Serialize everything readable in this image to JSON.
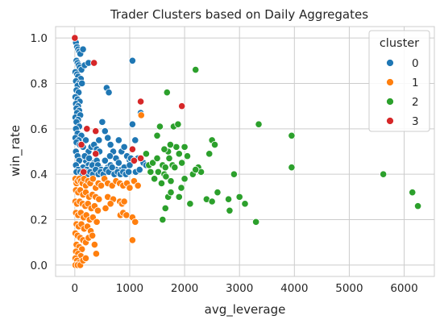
{
  "chart_data": {
    "type": "scatter",
    "title": "Trader Clusters based on Daily Aggregates",
    "xlabel": "avg_leverage",
    "ylabel": "win_rate",
    "xlim": [
      -350,
      6550
    ],
    "ylim": [
      -0.05,
      1.05
    ],
    "xticks": [
      0,
      1000,
      2000,
      3000,
      4000,
      5000,
      6000
    ],
    "yticks": [
      0.0,
      0.2,
      0.4,
      0.6,
      0.8,
      1.0
    ],
    "xtick_labels": [
      "0",
      "1000",
      "2000",
      "3000",
      "4000",
      "5000",
      "6000"
    ],
    "ytick_labels": [
      "0.0",
      "0.2",
      "0.4",
      "0.6",
      "0.8",
      "1.0"
    ],
    "grid": true,
    "legend": {
      "title": "cluster",
      "placement": "top-right"
    },
    "series": [
      {
        "name": "0",
        "color": "#1f77b4",
        "points": [
          [
            10,
            1.0
          ],
          [
            20,
            0.98
          ],
          [
            40,
            0.96
          ],
          [
            60,
            0.95
          ],
          [
            80,
            0.94
          ],
          [
            100,
            0.93
          ],
          [
            150,
            0.95
          ],
          [
            30,
            0.9
          ],
          [
            50,
            0.89
          ],
          [
            70,
            0.88
          ],
          [
            90,
            0.87
          ],
          [
            120,
            0.86
          ],
          [
            10,
            0.85
          ],
          [
            40,
            0.84
          ],
          [
            60,
            0.83
          ],
          [
            110,
            0.82
          ],
          [
            20,
            0.81
          ],
          [
            80,
            0.8
          ],
          [
            50,
            0.79
          ],
          [
            130,
            0.8
          ],
          [
            30,
            0.77
          ],
          [
            70,
            0.76
          ],
          [
            10,
            0.74
          ],
          [
            50,
            0.73
          ],
          [
            90,
            0.72
          ],
          [
            20,
            0.71
          ],
          [
            60,
            0.7
          ],
          [
            30,
            0.69
          ],
          [
            80,
            0.68
          ],
          [
            40,
            0.67
          ],
          [
            10,
            0.65
          ],
          [
            100,
            0.66
          ],
          [
            60,
            0.64
          ],
          [
            30,
            0.63
          ],
          [
            80,
            0.61
          ],
          [
            20,
            0.6
          ],
          [
            50,
            0.58
          ],
          [
            120,
            0.57
          ],
          [
            10,
            0.56
          ],
          [
            70,
            0.55
          ],
          [
            30,
            0.54
          ],
          [
            90,
            0.53
          ],
          [
            150,
            0.52
          ],
          [
            200,
            0.55
          ],
          [
            250,
            0.5
          ],
          [
            300,
            0.52
          ],
          [
            350,
            0.53
          ],
          [
            400,
            0.51
          ],
          [
            450,
            0.5
          ],
          [
            500,
            0.63
          ],
          [
            550,
            0.59
          ],
          [
            600,
            0.56
          ],
          [
            650,
            0.53
          ],
          [
            700,
            0.5
          ],
          [
            750,
            0.47
          ],
          [
            800,
            0.55
          ],
          [
            850,
            0.5
          ],
          [
            900,
            0.52
          ],
          [
            950,
            0.48
          ],
          [
            1000,
            0.46
          ],
          [
            1050,
            0.62
          ],
          [
            1100,
            0.55
          ],
          [
            1150,
            0.47
          ],
          [
            1200,
            0.67
          ],
          [
            1250,
            0.45
          ],
          [
            1300,
            0.44
          ],
          [
            200,
            0.46
          ],
          [
            250,
            0.44
          ],
          [
            300,
            0.43
          ],
          [
            350,
            0.45
          ],
          [
            400,
            0.46
          ],
          [
            450,
            0.43
          ],
          [
            500,
            0.41
          ],
          [
            550,
            0.46
          ],
          [
            600,
            0.43
          ],
          [
            650,
            0.44
          ],
          [
            700,
            0.41
          ],
          [
            750,
            0.42
          ],
          [
            800,
            0.45
          ],
          [
            850,
            0.42
          ],
          [
            900,
            0.43
          ],
          [
            950,
            0.41
          ],
          [
            1000,
            0.44
          ],
          [
            100,
            0.47
          ],
          [
            150,
            0.43
          ],
          [
            180,
            0.48
          ],
          [
            220,
            0.42
          ],
          [
            260,
            0.47
          ],
          [
            320,
            0.44
          ],
          [
            360,
            0.41
          ],
          [
            420,
            0.44
          ],
          [
            480,
            0.42
          ],
          [
            20,
            0.5
          ],
          [
            50,
            0.48
          ],
          [
            80,
            0.46
          ],
          [
            20,
            0.44
          ],
          [
            60,
            0.42
          ],
          [
            30,
            0.41
          ],
          [
            100,
            0.41
          ],
          [
            140,
            0.4
          ],
          [
            190,
            0.41
          ],
          [
            230,
            0.4
          ],
          [
            280,
            0.41
          ],
          [
            330,
            0.4
          ],
          [
            380,
            0.42
          ],
          [
            430,
            0.4
          ],
          [
            470,
            0.41
          ],
          [
            520,
            0.4
          ],
          [
            570,
            0.42
          ],
          [
            620,
            0.41
          ],
          [
            680,
            0.43
          ],
          [
            720,
            0.4
          ],
          [
            780,
            0.41
          ],
          [
            830,
            0.4
          ],
          [
            880,
            0.41
          ],
          [
            930,
            0.4
          ],
          [
            980,
            0.41
          ],
          [
            1050,
            0.9
          ],
          [
            580,
            0.78
          ],
          [
            620,
            0.76
          ],
          [
            180,
            0.88
          ],
          [
            250,
            0.89
          ],
          [
            440,
            0.55
          ],
          [
            640,
            0.48
          ],
          [
            1020,
            0.47
          ],
          [
            1110,
            0.41
          ],
          [
            1180,
            0.42
          ]
        ]
      },
      {
        "name": "1",
        "color": "#ff7f0e",
        "points": [
          [
            10,
            0.38
          ],
          [
            30,
            0.36
          ],
          [
            50,
            0.37
          ],
          [
            80,
            0.38
          ],
          [
            110,
            0.37
          ],
          [
            140,
            0.36
          ],
          [
            170,
            0.38
          ],
          [
            200,
            0.35
          ],
          [
            240,
            0.37
          ],
          [
            280,
            0.36
          ],
          [
            330,
            0.38
          ],
          [
            380,
            0.34
          ],
          [
            430,
            0.36
          ],
          [
            480,
            0.35
          ],
          [
            20,
            0.33
          ],
          [
            60,
            0.32
          ],
          [
            100,
            0.33
          ],
          [
            150,
            0.31
          ],
          [
            200,
            0.32
          ],
          [
            260,
            0.3
          ],
          [
            320,
            0.31
          ],
          [
            380,
            0.3
          ],
          [
            440,
            0.29
          ],
          [
            10,
            0.28
          ],
          [
            40,
            0.27
          ],
          [
            90,
            0.28
          ],
          [
            140,
            0.27
          ],
          [
            190,
            0.26
          ],
          [
            240,
            0.27
          ],
          [
            300,
            0.25
          ],
          [
            360,
            0.26
          ],
          [
            420,
            0.24
          ],
          [
            20,
            0.23
          ],
          [
            60,
            0.22
          ],
          [
            110,
            0.23
          ],
          [
            160,
            0.21
          ],
          [
            210,
            0.22
          ],
          [
            270,
            0.2
          ],
          [
            330,
            0.21
          ],
          [
            400,
            0.19
          ],
          [
            30,
            0.18
          ],
          [
            70,
            0.17
          ],
          [
            120,
            0.18
          ],
          [
            170,
            0.16
          ],
          [
            230,
            0.17
          ],
          [
            290,
            0.15
          ],
          [
            10,
            0.14
          ],
          [
            50,
            0.13
          ],
          [
            100,
            0.12
          ],
          [
            150,
            0.11
          ],
          [
            200,
            0.1
          ],
          [
            30,
            0.09
          ],
          [
            80,
            0.08
          ],
          [
            130,
            0.07
          ],
          [
            20,
            0.06
          ],
          [
            60,
            0.05
          ],
          [
            110,
            0.04
          ],
          [
            10,
            0.03
          ],
          [
            40,
            0.02
          ],
          [
            80,
            0.01
          ],
          [
            10,
            0.0
          ],
          [
            50,
            0.0
          ],
          [
            100,
            0.0
          ],
          [
            150,
            0.02
          ],
          [
            200,
            0.03
          ],
          [
            540,
            0.38
          ],
          [
            600,
            0.36
          ],
          [
            680,
            0.35
          ],
          [
            750,
            0.37
          ],
          [
            820,
            0.36
          ],
          [
            880,
            0.35
          ],
          [
            950,
            0.36
          ],
          [
            1000,
            0.34
          ],
          [
            1080,
            0.37
          ],
          [
            1150,
            0.35
          ],
          [
            1210,
            0.66
          ],
          [
            820,
            0.28
          ],
          [
            860,
            0.27
          ],
          [
            900,
            0.28
          ],
          [
            830,
            0.22
          ],
          [
            880,
            0.23
          ],
          [
            940,
            0.22
          ],
          [
            1050,
            0.21
          ],
          [
            1100,
            0.19
          ],
          [
            1050,
            0.11
          ],
          [
            390,
            0.05
          ],
          [
            600,
            0.3
          ],
          [
            700,
            0.29
          ],
          [
            560,
            0.25
          ],
          [
            650,
            0.27
          ],
          [
            250,
            0.12
          ],
          [
            320,
            0.13
          ],
          [
            360,
            0.09
          ]
        ]
      },
      {
        "name": "2",
        "color": "#2ca02c",
        "points": [
          [
            1300,
            0.49
          ],
          [
            1350,
            0.44
          ],
          [
            1380,
            0.41
          ],
          [
            1420,
            0.45
          ],
          [
            1450,
            0.38
          ],
          [
            1500,
            0.47
          ],
          [
            1520,
            0.41
          ],
          [
            1580,
            0.36
          ],
          [
            1600,
            0.44
          ],
          [
            1630,
            0.4
          ],
          [
            1650,
            0.43
          ],
          [
            1660,
            0.39
          ],
          [
            1680,
            0.76
          ],
          [
            1700,
            0.5
          ],
          [
            1720,
            0.47
          ],
          [
            1750,
            0.37
          ],
          [
            1780,
            0.44
          ],
          [
            1800,
            0.61
          ],
          [
            1850,
            0.52
          ],
          [
            1900,
            0.49
          ],
          [
            1950,
            0.45
          ],
          [
            2000,
            0.52
          ],
          [
            2050,
            0.48
          ],
          [
            2100,
            0.27
          ],
          [
            2150,
            0.4
          ],
          [
            2200,
            0.86
          ],
          [
            2250,
            0.43
          ],
          [
            2300,
            0.41
          ],
          [
            2400,
            0.29
          ],
          [
            2450,
            0.49
          ],
          [
            2500,
            0.55
          ],
          [
            2550,
            0.53
          ],
          [
            2600,
            0.32
          ],
          [
            1600,
            0.2
          ],
          [
            1650,
            0.25
          ],
          [
            1700,
            0.3
          ],
          [
            1750,
            0.32
          ],
          [
            1900,
            0.3
          ],
          [
            2500,
            0.28
          ],
          [
            2800,
            0.29
          ],
          [
            2820,
            0.24
          ],
          [
            2900,
            0.4
          ],
          [
            3000,
            0.3
          ],
          [
            3100,
            0.27
          ],
          [
            3300,
            0.19
          ],
          [
            3350,
            0.62
          ],
          [
            3950,
            0.57
          ],
          [
            3950,
            0.43
          ],
          [
            5620,
            0.4
          ],
          [
            6150,
            0.32
          ],
          [
            6250,
            0.26
          ],
          [
            1550,
            0.61
          ],
          [
            1500,
            0.57
          ],
          [
            1880,
            0.62
          ],
          [
            2000,
            0.38
          ],
          [
            1740,
            0.53
          ],
          [
            1630,
            0.51
          ],
          [
            1820,
            0.43
          ],
          [
            1940,
            0.34
          ],
          [
            2200,
            0.42
          ]
        ]
      },
      {
        "name": "3",
        "color": "#d62728",
        "points": [
          [
            0,
            1.0
          ],
          [
            350,
            0.89
          ],
          [
            1200,
            0.72
          ],
          [
            1200,
            0.47
          ],
          [
            1050,
            0.51
          ],
          [
            1950,
            0.7
          ],
          [
            120,
            0.53
          ],
          [
            220,
            0.6
          ],
          [
            380,
            0.59
          ],
          [
            380,
            0.49
          ],
          [
            160,
            0.41
          ],
          [
            1080,
            0.46
          ]
        ]
      }
    ]
  }
}
